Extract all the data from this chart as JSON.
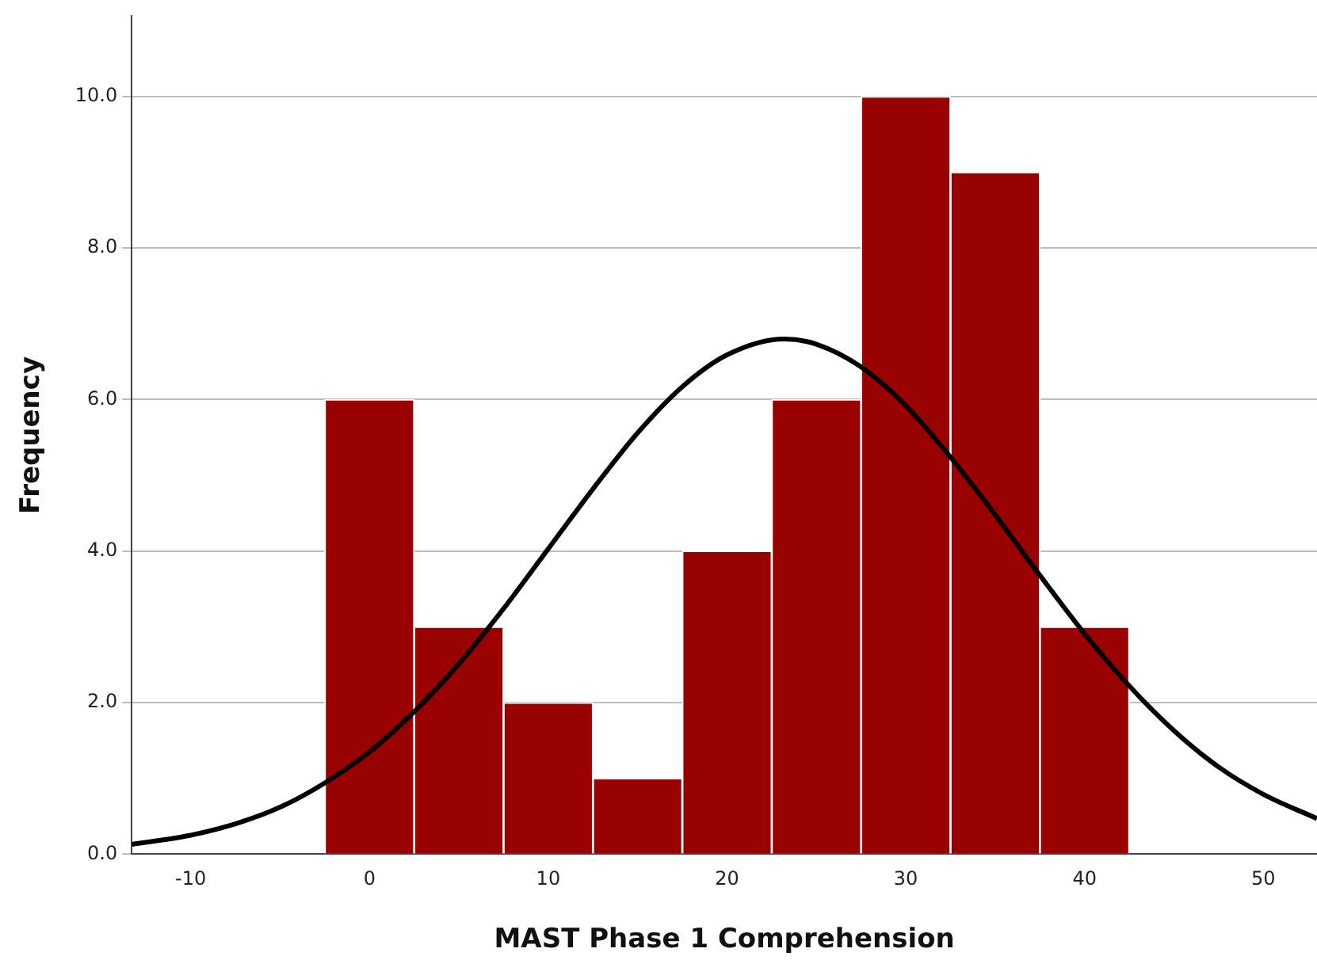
{
  "chart_data": {
    "type": "histogram",
    "xlabel": "MAST Phase 1 Comprehension",
    "ylabel": "Frequency",
    "bins": [
      -2.5,
      2.5,
      7.5,
      12.5,
      17.5,
      22.5,
      27.5,
      32.5,
      37.5,
      42.5
    ],
    "values": [
      6,
      3,
      2,
      1,
      4,
      6,
      10,
      9,
      3
    ],
    "color": "#990000",
    "series": [
      {
        "type": "line",
        "color": "#000000",
        "marker": "none",
        "x": [
          -13.3,
          -10,
          -7.5,
          -5,
          -2.5,
          0,
          2.5,
          5,
          7.5,
          10,
          12.5,
          15,
          17.5,
          20,
          23.2,
          25,
          27.5,
          30,
          32.5,
          35,
          37.5,
          40,
          42.5,
          45,
          47.5,
          50,
          53
        ],
        "values": [
          0.13,
          0.25,
          0.4,
          0.62,
          0.94,
          1.35,
          1.88,
          2.51,
          3.24,
          4.03,
          4.82,
          5.56,
          6.17,
          6.59,
          6.8,
          6.73,
          6.43,
          5.92,
          5.24,
          4.48,
          3.68,
          2.91,
          2.22,
          1.63,
          1.15,
          0.79,
          0.47
        ]
      }
    ],
    "xlim": [
      -13.3,
      53
    ],
    "xticks": [
      -10,
      0,
      10,
      20,
      30,
      40,
      50
    ],
    "ylim": [
      0,
      11.06
    ],
    "yticks": [
      {
        "value": 0,
        "label": "0.0"
      },
      {
        "value": 2,
        "label": "2.0"
      },
      {
        "value": 4,
        "label": "4.0"
      },
      {
        "value": 6,
        "label": "6.0"
      },
      {
        "value": 8,
        "label": "8.0"
      },
      {
        "value": 10,
        "label": "10.0"
      }
    ],
    "grid": "y",
    "legend": false
  }
}
